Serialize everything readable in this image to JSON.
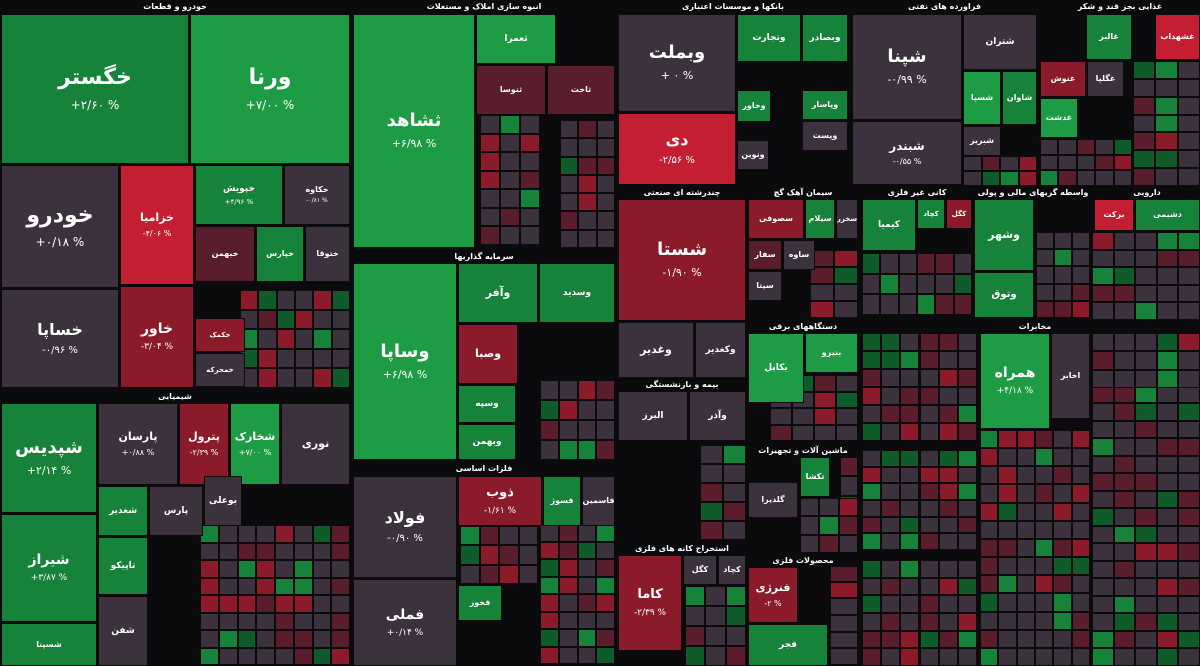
{
  "colors": {
    "pos_strong": "#1e9c45",
    "pos": "#16823a",
    "pos_weak": "#0f5c2a",
    "neutral": "#3b323d",
    "neg_weak": "#5a1d2c",
    "neg": "#8b1a2b",
    "neg_strong": "#c41e32"
  },
  "chart_data": {
    "type": "treemap",
    "sectors": [
      {
        "name": "خودرو و قطعات",
        "tiles": [
          {
            "symbol": "خگستر",
            "change": "+۲/۶۰ %"
          },
          {
            "symbol": "ورنا",
            "change": "+۷/۰۰ %"
          },
          {
            "symbol": "خودرو",
            "change": "+۰/۱۸ %"
          },
          {
            "symbol": "خزامیا",
            "change": "-۴/۰۶ %"
          },
          {
            "symbol": "خاور",
            "change": "-۳/۰۴ %"
          },
          {
            "symbol": "خساپا",
            "change": "-۰/۹۶ %"
          },
          {
            "symbol": "خپویش",
            "change": "+۴/۹۶ %"
          },
          {
            "symbol": "خکاوه",
            "change": "-۰/۸۱ %"
          },
          {
            "symbol": "خبهمن",
            "change": ""
          },
          {
            "symbol": "خپارس",
            "change": ""
          },
          {
            "symbol": "ختوقا",
            "change": ""
          },
          {
            "symbol": "خکمک",
            "change": ""
          },
          {
            "symbol": "خمحرکه",
            "change": ""
          }
        ]
      },
      {
        "name": "انبوه سازی املاک و مستغلات",
        "tiles": [
          {
            "symbol": "ثشاهد",
            "change": "+۶/۹۸ %"
          },
          {
            "symbol": "ثعمرا",
            "change": ""
          },
          {
            "symbol": "ثنوسا",
            "change": ""
          },
          {
            "symbol": "ثاخت",
            "change": ""
          }
        ]
      },
      {
        "name": "سرمایه گذاریها",
        "tiles": [
          {
            "symbol": "وساپا",
            "change": "+۶/۹۸ %"
          },
          {
            "symbol": "وآفر",
            "change": ""
          },
          {
            "symbol": "وسدید",
            "change": ""
          },
          {
            "symbol": "وصبا",
            "change": ""
          },
          {
            "symbol": "وسپه",
            "change": ""
          },
          {
            "symbol": "وبهمن",
            "change": ""
          }
        ]
      },
      {
        "name": "سیمان آهک گچ",
        "tiles": [
          {
            "symbol": "سصوفی",
            "change": ""
          },
          {
            "symbol": "سیلام",
            "change": ""
          },
          {
            "symbol": "سخزر",
            "change": ""
          },
          {
            "symbol": "سفار",
            "change": ""
          },
          {
            "symbol": "سیتا",
            "change": ""
          },
          {
            "symbol": "ساوه",
            "change": ""
          }
        ]
      },
      {
        "name": "بانکها و موسسات اعتباری",
        "tiles": [
          {
            "symbol": "وبملت",
            "change": "+ ۰ %"
          },
          {
            "symbol": "وتجارت",
            "change": ""
          },
          {
            "symbol": "وبصادر",
            "change": ""
          },
          {
            "symbol": "دی",
            "change": "-۲/۵۶ %"
          },
          {
            "symbol": "وخاور",
            "change": ""
          },
          {
            "symbol": "ونوین",
            "change": ""
          },
          {
            "symbol": "وپاسار",
            "change": ""
          },
          {
            "symbol": "وپست",
            "change": ""
          }
        ]
      },
      {
        "name": "چندرشته ای صنعتی",
        "tiles": [
          {
            "symbol": "شستا",
            "change": "-۱/۹۰ %"
          },
          {
            "symbol": "وغدیر",
            "change": ""
          },
          {
            "symbol": "وکغدیر",
            "change": ""
          }
        ]
      },
      {
        "name": "بیمه و بازنشستگی",
        "tiles": [
          {
            "symbol": "البرز",
            "change": ""
          },
          {
            "symbol": "وآذر",
            "change": ""
          }
        ]
      },
      {
        "name": "فراورده های نفتی",
        "tiles": [
          {
            "symbol": "شپنا",
            "change": "-۰/۹۹ %"
          },
          {
            "symbol": "شبندر",
            "change": "-۰/۵۵ %"
          },
          {
            "symbol": "شتران",
            "change": ""
          },
          {
            "symbol": "شسپا",
            "change": ""
          },
          {
            "symbol": "شاوان",
            "change": ""
          },
          {
            "symbol": "شبریز",
            "change": ""
          }
        ]
      },
      {
        "name": "غذایی بجز قند و شکر",
        "tiles": [
          {
            "symbol": "غالبر",
            "change": ""
          },
          {
            "symbol": "غشهداب",
            "change": ""
          },
          {
            "symbol": "غنوش",
            "change": ""
          },
          {
            "symbol": "غگلپا",
            "change": ""
          },
          {
            "symbol": "غدشت",
            "change": ""
          }
        ]
      },
      {
        "name": "کانی غیر فلزی",
        "tiles": [
          {
            "symbol": "کچاد",
            "change": ""
          },
          {
            "symbol": "کگل",
            "change": ""
          },
          {
            "symbol": "کیمیا",
            "change": ""
          }
        ]
      },
      {
        "name": "واسطه گریهای مالی و پولی",
        "tiles": [
          {
            "symbol": "وشهر",
            "change": ""
          },
          {
            "symbol": "وتوق",
            "change": ""
          }
        ]
      },
      {
        "name": "دارویی",
        "tiles": [
          {
            "symbol": "برکت",
            "change": ""
          },
          {
            "symbol": "دشیمی",
            "change": ""
          }
        ]
      },
      {
        "name": "شیمیایی",
        "tiles": [
          {
            "symbol": "شپدیس",
            "change": "+۲/۱۴ %"
          },
          {
            "symbol": "شیراز",
            "change": "+۳/۸۷ %"
          },
          {
            "symbol": "شسپنا",
            "change": ""
          },
          {
            "symbol": "پارسان",
            "change": "+۰/۸۸ %"
          },
          {
            "symbol": "پترول",
            "change": "-۲/۳۹ %"
          },
          {
            "symbol": "شخارک",
            "change": "+۷/۰۰ %"
          },
          {
            "symbol": "نوری",
            "change": ""
          },
          {
            "symbol": "شغدیر",
            "change": ""
          },
          {
            "symbol": "تاپیکو",
            "change": ""
          },
          {
            "symbol": "شفن",
            "change": ""
          },
          {
            "symbol": "پارس",
            "change": ""
          },
          {
            "symbol": "بوعلی",
            "change": ""
          }
        ]
      },
      {
        "name": "فلزات اساسی",
        "tiles": [
          {
            "symbol": "فولاد",
            "change": "-۰/۹۰ %"
          },
          {
            "symbol": "فملی",
            "change": "+۰/۱۴ %"
          },
          {
            "symbol": "ذوب",
            "change": "-۱/۶۱ %"
          },
          {
            "symbol": "فسوژ",
            "change": ""
          },
          {
            "symbol": "فاسمین",
            "change": ""
          },
          {
            "symbol": "فخوز",
            "change": ""
          }
        ]
      },
      {
        "name": "استخراج کانه های فلزی",
        "tiles": [
          {
            "symbol": "کاما",
            "change": "-۲/۳۹ %"
          },
          {
            "symbol": "کگل",
            "change": ""
          },
          {
            "symbol": "کچاد",
            "change": ""
          }
        ]
      },
      {
        "name": "دستگاههای برقی",
        "tiles": [
          {
            "symbol": "بکابل",
            "change": ""
          },
          {
            "symbol": "بنیرو",
            "change": ""
          }
        ]
      },
      {
        "name": "ماشین آلات و تجهیزات",
        "tiles": [
          {
            "symbol": "تکشا",
            "change": ""
          },
          {
            "symbol": "گلدیرا",
            "change": ""
          }
        ]
      },
      {
        "name": "مخابرات",
        "tiles": [
          {
            "symbol": "همراه",
            "change": "+۴/۱۸ %"
          },
          {
            "symbol": "اخابر",
            "change": ""
          }
        ]
      },
      {
        "name": "محصولات فلزی",
        "tiles": [
          {
            "symbol": "فنرژی",
            "change": "-۲ %"
          },
          {
            "symbol": "فجر",
            "change": ""
          }
        ]
      }
    ]
  }
}
